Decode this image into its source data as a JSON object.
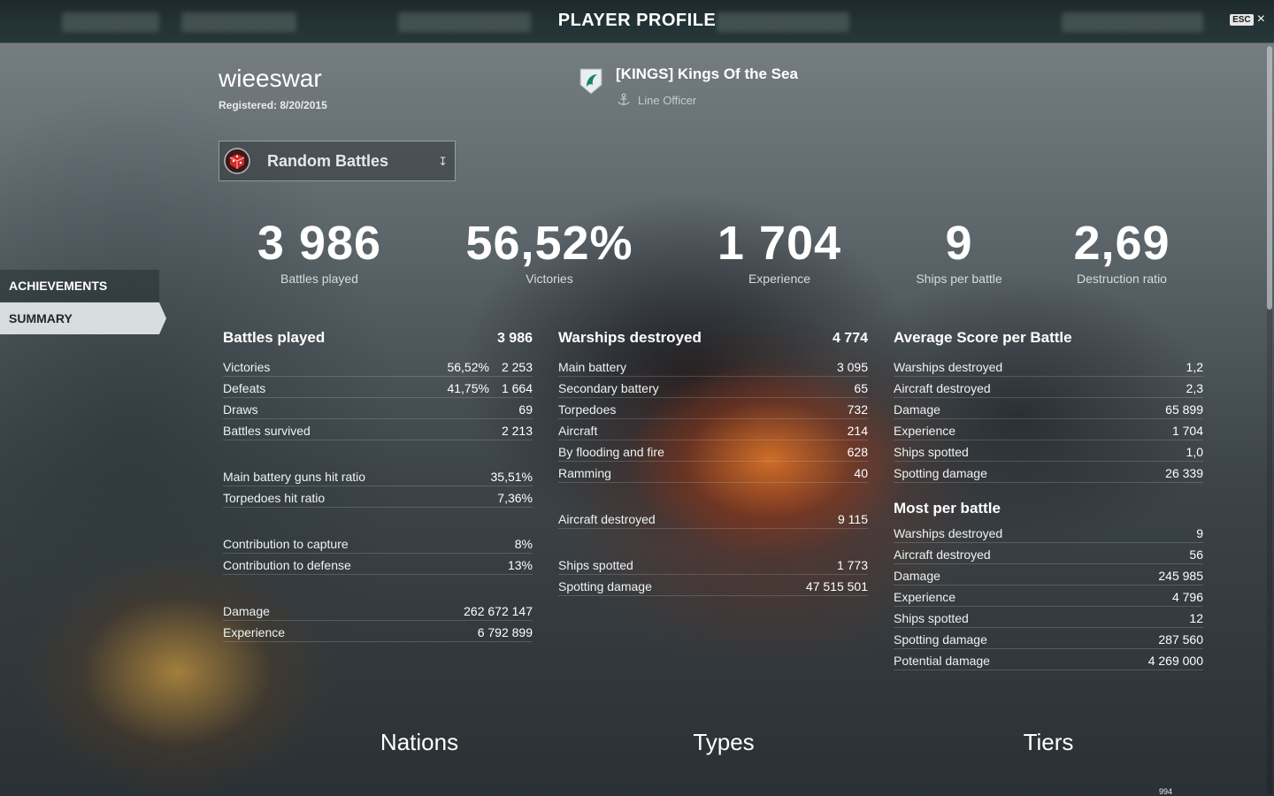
{
  "header": {
    "title": "PLAYER PROFILE",
    "esc_label": "ESC",
    "close_symbol": "×"
  },
  "player": {
    "name": "wieeswar",
    "registered": "Registered: 8/20/2015"
  },
  "clan": {
    "name": "[KINGS] Kings Of the Sea",
    "role": "Line Officer",
    "logo_icon": "clan-shield-icon",
    "role_icon": "anchor-icon"
  },
  "battle_type": {
    "label": "Random Battles",
    "icon": "random-battles-icon",
    "chevron_icon": "chevron-down-icon"
  },
  "nav": {
    "achievements": "ACHIEVEMENTS",
    "summary": "SUMMARY"
  },
  "summary": [
    {
      "value": "3 986",
      "label": "Battles played"
    },
    {
      "value": "56,52%",
      "label": "Victories"
    },
    {
      "value": "1 704",
      "label": "Experience"
    },
    {
      "value": "9",
      "label": "Ships per battle"
    },
    {
      "value": "2,69",
      "label": "Destruction ratio"
    }
  ],
  "col1": {
    "header": {
      "label": "Battles played",
      "value": "3 986"
    },
    "victories": {
      "label": "Victories",
      "pct": "56,52%",
      "value": "2 253"
    },
    "defeats": {
      "label": "Defeats",
      "pct": "41,75%",
      "value": "1 664"
    },
    "draws": {
      "label": "Draws",
      "value": "69"
    },
    "survived": {
      "label": "Battles survived",
      "value": "2 213"
    },
    "main_hit": {
      "label": "Main battery guns hit ratio",
      "value": "35,51%"
    },
    "torp_hit": {
      "label": "Torpedoes hit ratio",
      "value": "7,36%"
    },
    "capture": {
      "label": "Contribution to capture",
      "value": "8%"
    },
    "defense": {
      "label": "Contribution to defense",
      "value": "13%"
    },
    "damage": {
      "label": "Damage",
      "value": "262 672 147"
    },
    "experience": {
      "label": "Experience",
      "value": "6 792 899"
    }
  },
  "col2": {
    "header": {
      "label": "Warships destroyed",
      "value": "4 774"
    },
    "main_battery": {
      "label": "Main battery",
      "value": "3 095"
    },
    "secondary": {
      "label": "Secondary battery",
      "value": "65"
    },
    "torpedoes": {
      "label": "Torpedoes",
      "value": "732"
    },
    "aircraft": {
      "label": "Aircraft",
      "value": "214"
    },
    "flooding": {
      "label": "By flooding and fire",
      "value": "628"
    },
    "ramming": {
      "label": "Ramming",
      "value": "40"
    },
    "aircraft_destroyed": {
      "label": "Aircraft destroyed",
      "value": "9 115"
    },
    "ships_spotted": {
      "label": "Ships spotted",
      "value": "1 773"
    },
    "spotting_damage": {
      "label": "Spotting damage",
      "value": "47 515 501"
    }
  },
  "col3": {
    "avg_header": "Average Score per Battle",
    "avg": [
      {
        "label": "Warships destroyed",
        "value": "1,2"
      },
      {
        "label": "Aircraft destroyed",
        "value": "2,3"
      },
      {
        "label": "Damage",
        "value": "65 899"
      },
      {
        "label": "Experience",
        "value": "1 704"
      },
      {
        "label": "Ships spotted",
        "value": "1,0"
      },
      {
        "label": "Spotting damage",
        "value": "26 339"
      }
    ],
    "most_header": "Most per battle",
    "most": [
      {
        "label": "Warships destroyed",
        "value": "9"
      },
      {
        "label": "Aircraft destroyed",
        "value": "56"
      },
      {
        "label": "Damage",
        "value": "245 985"
      },
      {
        "label": "Experience",
        "value": "4 796"
      },
      {
        "label": "Ships spotted",
        "value": "12"
      },
      {
        "label": "Spotting damage",
        "value": "287 560"
      },
      {
        "label": "Potential damage",
        "value": "4 269 000"
      }
    ]
  },
  "sections": {
    "nations": "Nations",
    "types": "Types",
    "tiers": "Tiers"
  },
  "tiers_peek_value": "994"
}
